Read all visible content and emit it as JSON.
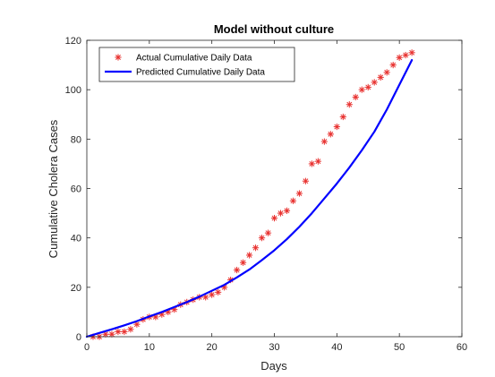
{
  "chart_data": {
    "type": "line",
    "title": "Model without culture",
    "xlabel": "Days",
    "ylabel": "Cumulative Cholera Cases",
    "xlim": [
      0,
      60
    ],
    "ylim": [
      0,
      120
    ],
    "xticks": [
      0,
      10,
      20,
      30,
      40,
      50,
      60
    ],
    "yticks": [
      0,
      20,
      40,
      60,
      80,
      100,
      120
    ],
    "grid": false,
    "legend_position": "top-left",
    "series": [
      {
        "name": "Actual Cumulative Daily Data",
        "style": "scatter",
        "marker": "asterisk",
        "color": "#e8312f",
        "x": [
          1,
          2,
          3,
          4,
          5,
          6,
          7,
          8,
          9,
          10,
          11,
          12,
          13,
          14,
          15,
          16,
          17,
          18,
          19,
          20,
          21,
          22,
          23,
          24,
          25,
          26,
          27,
          28,
          29,
          30,
          31,
          32,
          33,
          34,
          35,
          36,
          37,
          38,
          39,
          40,
          41,
          42,
          43,
          44,
          45,
          46,
          47,
          48,
          49,
          50,
          51,
          52
        ],
        "y": [
          0,
          0,
          1,
          1,
          2,
          2,
          3,
          5,
          7,
          8,
          8,
          9,
          10,
          11,
          13,
          14,
          15,
          16,
          16,
          17,
          18,
          20,
          23,
          27,
          30,
          33,
          36,
          40,
          42,
          48,
          50,
          51,
          55,
          58,
          63,
          70,
          71,
          79,
          82,
          85,
          89,
          94,
          97,
          100,
          101,
          103,
          105,
          107,
          110,
          113,
          114,
          115
        ]
      },
      {
        "name": "Predicted Cumulative Daily Data",
        "style": "line",
        "color": "#0000ff",
        "x": [
          0,
          2,
          4,
          6,
          8,
          10,
          12,
          14,
          16,
          18,
          20,
          22,
          24,
          26,
          28,
          30,
          32,
          34,
          36,
          38,
          40,
          42,
          44,
          46,
          48,
          50,
          52
        ],
        "y": [
          0,
          1.5,
          3,
          4.6,
          6.3,
          8.2,
          10,
          12,
          14,
          16.2,
          18.6,
          21,
          24,
          27.2,
          31,
          35,
          39.5,
          44.5,
          50,
          56,
          62,
          68.5,
          75.5,
          83,
          92,
          102,
          112
        ]
      }
    ]
  }
}
